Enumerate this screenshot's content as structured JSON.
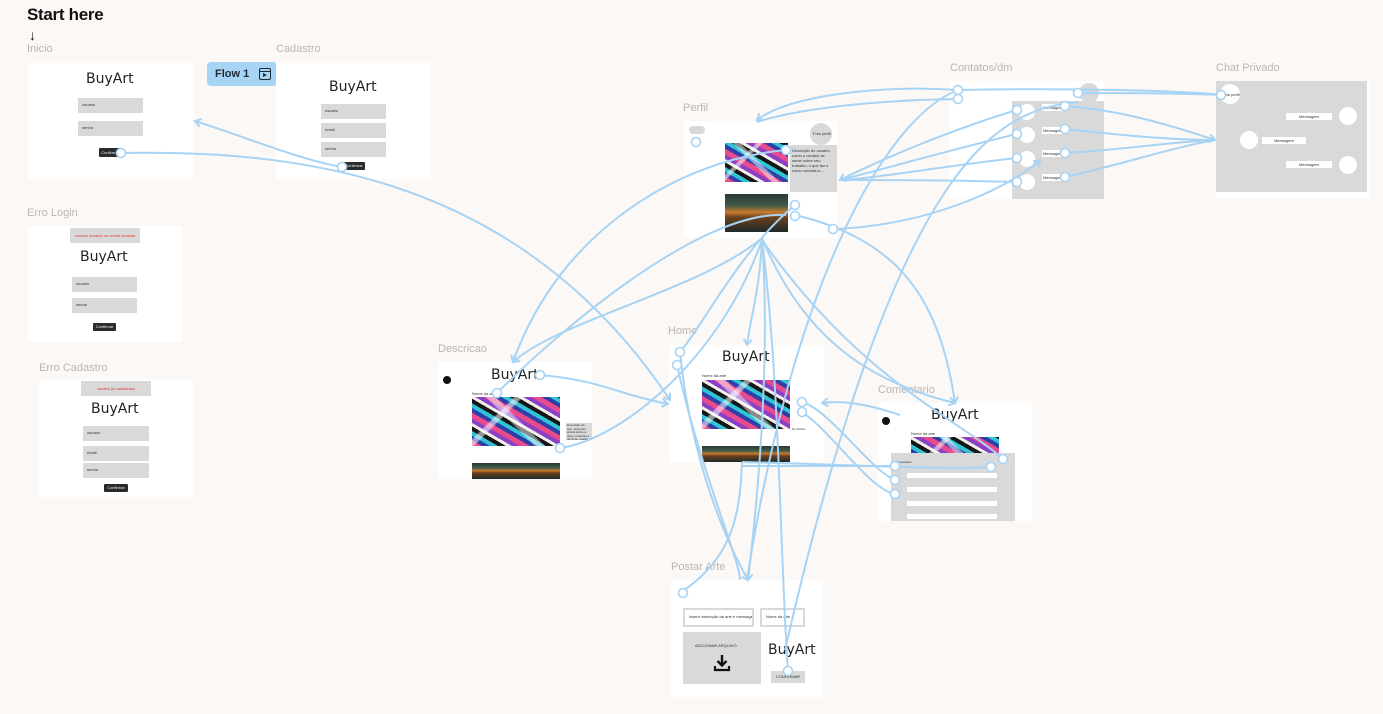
{
  "canvas": {
    "start_title": "Start here",
    "start_arrow": "↓",
    "flow_badge": {
      "label": "Flow 1",
      "icon": "play-frame-icon"
    }
  },
  "brand": "BuyArt",
  "colors": {
    "connector": "#a7d3f4",
    "canvas": "#fcf8f6",
    "error_text": "#e23a3a"
  },
  "frames": {
    "inicio": {
      "label": "Inicio",
      "fields": [
        "usuario",
        "senha"
      ],
      "button": "Confirmar"
    },
    "cadastro": {
      "label": "Cadastro",
      "fields": [
        "usuario",
        "email",
        "senha"
      ],
      "button": "Confirmar"
    },
    "erro_login": {
      "label": "Erro Login",
      "error": "usuario Invalido ou senha Invalida",
      "fields": [
        "usuario",
        "senha"
      ],
      "button": "Confirmar"
    },
    "erro_cadastro": {
      "label": "Erro Cadastro",
      "error": "usuário já cadastrado",
      "fields": [
        "usuario",
        "email",
        "senha"
      ],
      "button": "Confirmar"
    },
    "perfil": {
      "label": "Perfil",
      "avatar_label": "Foto perfil",
      "description": "Descrição do usuário, como o usuário se sente sobre seu trabalho, o que faz e como contatá-lo..."
    },
    "contatos": {
      "label": "Contatos/dm",
      "items": [
        "Mensagem",
        "Mensagem",
        "Mensagem",
        "Mensagem"
      ]
    },
    "chat": {
      "label": "Chat Privado",
      "avatar_label": "Foto perfil",
      "messages": [
        "Mensagem",
        "Mensagem",
        "Mensagem"
      ]
    },
    "descricao": {
      "label": "Descricao",
      "art_name": "Nome da arte",
      "art_description": "Descrição da arte, feita pelo artista sobre a obra, materiais e técnicas usadas"
    },
    "home": {
      "label": "Home",
      "art_name": "Nome da arte",
      "art_author": "Do Artista"
    },
    "comentario": {
      "label": "Comentario",
      "art_name": "Nome da arte",
      "comment_label": "Comentário"
    },
    "postar": {
      "label": "Postar Arte",
      "input_description": "Inserir descrição da arte e mensagem...",
      "input_name": "Nome da arte...",
      "upload_label": "ADICIONAR ARQUIVO",
      "confirm": "CONFIRMAR"
    }
  }
}
